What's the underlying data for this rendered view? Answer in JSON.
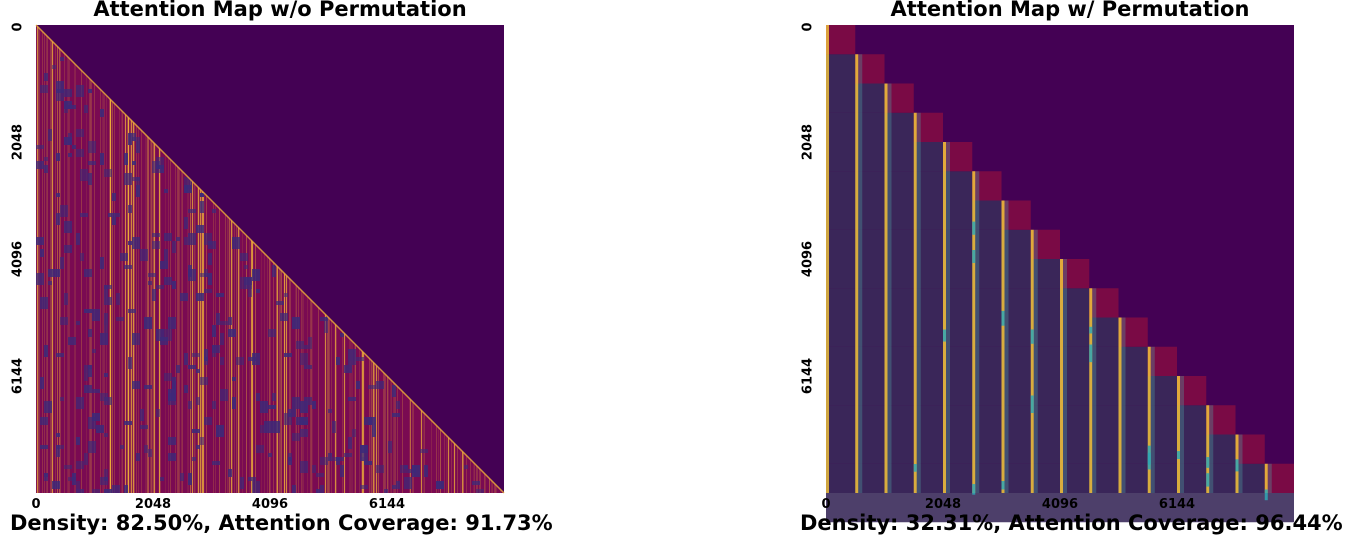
{
  "chart_data": [
    {
      "type": "heatmap",
      "title": "Attention Map w/o Permutation",
      "caption": "Density: 82.50%, Attention Coverage: 91.73%",
      "density_percent": 82.5,
      "attention_coverage_percent": 91.73,
      "sequence_length": 8192,
      "xticks": [
        "0",
        "2048",
        "4096",
        "6144"
      ],
      "yticks": [
        "0",
        "2048",
        "4096",
        "6144"
      ],
      "mask": "causal lower-triangular",
      "pattern": "scattered",
      "colors": {
        "background": "#440154",
        "active": "#7a0a52",
        "sparse": "#3b2a7a",
        "stripe": "#f0b13a"
      }
    },
    {
      "type": "heatmap",
      "title": "Attention Map w/ Permutation",
      "caption": "Density: 32.31%, Attention Coverage: 96.44%",
      "density_percent": 32.31,
      "attention_coverage_percent": 96.44,
      "sequence_length": 8192,
      "block_count": 16,
      "xticks": [
        "0",
        "2048",
        "4096",
        "6144"
      ],
      "yticks": [
        "0",
        "2048",
        "4096",
        "6144"
      ],
      "mask": "block-causal",
      "pattern": "diagonal-blocks",
      "colors": {
        "background": "#440154",
        "active": "#3a2a5a",
        "block": "#7a0a45",
        "stripe": "#f5c53a"
      }
    }
  ]
}
